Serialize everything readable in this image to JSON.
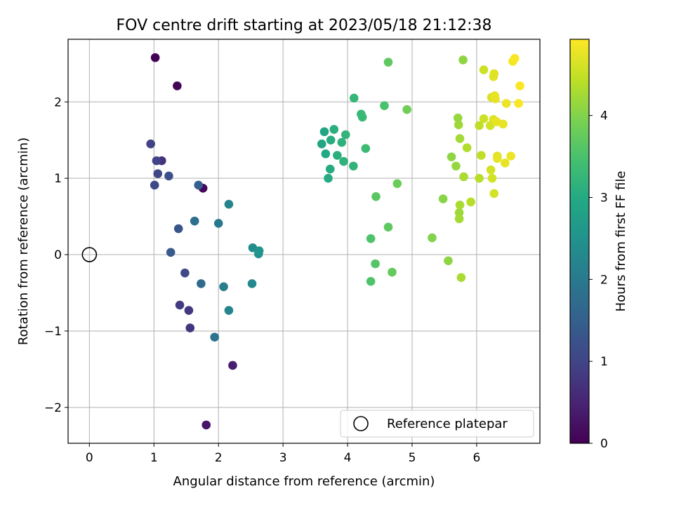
{
  "chart_data": {
    "type": "scatter",
    "title": "FOV centre drift starting at 2023/05/18 21:12:38",
    "xlabel": "Angular distance from reference (arcmin)",
    "ylabel": "Rotation from reference (arcmin)",
    "xlim": [
      -0.33,
      6.98
    ],
    "ylim": [
      -2.47,
      2.82
    ],
    "xticks": [
      0,
      1,
      2,
      3,
      4,
      5,
      6
    ],
    "xtick_labels": [
      "0",
      "1",
      "2",
      "3",
      "4",
      "5",
      "6"
    ],
    "yticks": [
      -2,
      -1,
      0,
      1,
      2
    ],
    "ytick_labels": [
      "−2",
      "−1",
      "0",
      "1",
      "2"
    ],
    "grid": true,
    "colormap": "viridis",
    "colorbar": {
      "label": "Hours from first FF file",
      "range": [
        0,
        4.93
      ],
      "ticks": [
        0,
        1,
        2,
        3,
        4
      ],
      "tick_labels": [
        "0",
        "1",
        "2",
        "3",
        "4"
      ]
    },
    "legend": {
      "location": "lower right",
      "entries": [
        {
          "label": "Reference platepar",
          "marker": "open-circle"
        }
      ]
    },
    "reference": {
      "x": 0,
      "y": 0
    },
    "points": [
      {
        "x": 1.02,
        "y": 2.58,
        "h": 0.02
      },
      {
        "x": 1.36,
        "y": 2.21,
        "h": 0.05
      },
      {
        "x": 1.76,
        "y": 0.87,
        "h": 0.1
      },
      {
        "x": 1.81,
        "y": -2.23,
        "h": 0.3
      },
      {
        "x": 2.22,
        "y": -1.45,
        "h": 0.4
      },
      {
        "x": 1.12,
        "y": 1.23,
        "h": 0.7
      },
      {
        "x": 1.56,
        "y": -0.96,
        "h": 0.75
      },
      {
        "x": 1.54,
        "y": -0.73,
        "h": 0.8
      },
      {
        "x": 1.4,
        "y": -0.66,
        "h": 0.85
      },
      {
        "x": 0.95,
        "y": 1.45,
        "h": 0.95
      },
      {
        "x": 1.04,
        "y": 1.23,
        "h": 1.0
      },
      {
        "x": 1.06,
        "y": 1.06,
        "h": 1.05
      },
      {
        "x": 1.01,
        "y": 0.91,
        "h": 1.1
      },
      {
        "x": 1.48,
        "y": -0.24,
        "h": 1.1
      },
      {
        "x": 1.23,
        "y": 1.03,
        "h": 1.2
      },
      {
        "x": 1.38,
        "y": 0.34,
        "h": 1.3
      },
      {
        "x": 1.26,
        "y": 0.03,
        "h": 1.4
      },
      {
        "x": 1.69,
        "y": 0.91,
        "h": 1.5
      },
      {
        "x": 1.73,
        "y": -0.38,
        "h": 1.7
      },
      {
        "x": 1.63,
        "y": 0.44,
        "h": 1.8
      },
      {
        "x": 1.94,
        "y": -1.08,
        "h": 1.9
      },
      {
        "x": 2.0,
        "y": 0.41,
        "h": 2.0
      },
      {
        "x": 2.08,
        "y": -0.42,
        "h": 2.1
      },
      {
        "x": 2.16,
        "y": 0.66,
        "h": 2.2
      },
      {
        "x": 2.16,
        "y": -0.73,
        "h": 2.2
      },
      {
        "x": 2.52,
        "y": -0.38,
        "h": 2.3
      },
      {
        "x": 2.53,
        "y": 0.09,
        "h": 2.4
      },
      {
        "x": 2.62,
        "y": 0.01,
        "h": 2.5
      },
      {
        "x": 2.63,
        "y": 0.05,
        "h": 2.55
      },
      {
        "x": 3.6,
        "y": 1.45,
        "h": 2.9
      },
      {
        "x": 3.64,
        "y": 1.61,
        "h": 2.9
      },
      {
        "x": 3.66,
        "y": 1.32,
        "h": 2.95
      },
      {
        "x": 3.7,
        "y": 1.0,
        "h": 3.0
      },
      {
        "x": 3.73,
        "y": 1.12,
        "h": 3.0
      },
      {
        "x": 3.74,
        "y": 1.5,
        "h": 3.05
      },
      {
        "x": 3.79,
        "y": 1.64,
        "h": 3.1
      },
      {
        "x": 3.84,
        "y": 1.3,
        "h": 3.1
      },
      {
        "x": 3.91,
        "y": 1.47,
        "h": 3.15
      },
      {
        "x": 3.94,
        "y": 1.22,
        "h": 3.15
      },
      {
        "x": 3.97,
        "y": 1.57,
        "h": 3.2
      },
      {
        "x": 4.09,
        "y": 1.16,
        "h": 3.2
      },
      {
        "x": 4.1,
        "y": 2.05,
        "h": 3.25
      },
      {
        "x": 4.21,
        "y": 1.84,
        "h": 3.3
      },
      {
        "x": 4.23,
        "y": 1.8,
        "h": 3.3
      },
      {
        "x": 4.28,
        "y": 1.39,
        "h": 3.35
      },
      {
        "x": 4.57,
        "y": 1.95,
        "h": 3.5
      },
      {
        "x": 4.36,
        "y": 0.21,
        "h": 3.55
      },
      {
        "x": 4.36,
        "y": -0.35,
        "h": 3.55
      },
      {
        "x": 4.43,
        "y": -0.12,
        "h": 3.6
      },
      {
        "x": 4.44,
        "y": 0.76,
        "h": 3.65
      },
      {
        "x": 4.63,
        "y": 2.52,
        "h": 3.7
      },
      {
        "x": 4.63,
        "y": 0.36,
        "h": 3.7
      },
      {
        "x": 4.69,
        "y": -0.23,
        "h": 3.75
      },
      {
        "x": 4.77,
        "y": 0.93,
        "h": 3.8
      },
      {
        "x": 4.92,
        "y": 1.9,
        "h": 3.85
      },
      {
        "x": 5.31,
        "y": 0.22,
        "h": 4.0
      },
      {
        "x": 5.48,
        "y": 0.73,
        "h": 4.05
      },
      {
        "x": 5.56,
        "y": -0.08,
        "h": 4.1
      },
      {
        "x": 5.61,
        "y": 1.28,
        "h": 4.1
      },
      {
        "x": 5.68,
        "y": 1.16,
        "h": 4.15
      },
      {
        "x": 5.71,
        "y": 1.79,
        "h": 4.15
      },
      {
        "x": 5.72,
        "y": 1.7,
        "h": 4.2
      },
      {
        "x": 5.73,
        "y": 0.55,
        "h": 4.2
      },
      {
        "x": 5.73,
        "y": 0.47,
        "h": 4.25
      },
      {
        "x": 5.74,
        "y": 1.52,
        "h": 4.25
      },
      {
        "x": 5.74,
        "y": 0.65,
        "h": 4.3
      },
      {
        "x": 5.76,
        "y": -0.3,
        "h": 4.3
      },
      {
        "x": 5.79,
        "y": 2.55,
        "h": 4.1
      },
      {
        "x": 5.8,
        "y": 1.02,
        "h": 4.3
      },
      {
        "x": 5.85,
        "y": 1.4,
        "h": 4.35
      },
      {
        "x": 5.91,
        "y": 0.69,
        "h": 4.4
      },
      {
        "x": 6.04,
        "y": 1.0,
        "h": 4.4
      },
      {
        "x": 6.04,
        "y": 1.69,
        "h": 4.45
      },
      {
        "x": 6.07,
        "y": 1.3,
        "h": 4.45
      },
      {
        "x": 6.11,
        "y": 2.42,
        "h": 4.55
      },
      {
        "x": 6.11,
        "y": 1.78,
        "h": 4.55
      },
      {
        "x": 6.21,
        "y": 1.69,
        "h": 4.6
      },
      {
        "x": 6.22,
        "y": 1.11,
        "h": 4.6
      },
      {
        "x": 6.23,
        "y": 2.06,
        "h": 4.65
      },
      {
        "x": 6.24,
        "y": 1.0,
        "h": 4.6
      },
      {
        "x": 6.26,
        "y": 1.77,
        "h": 4.7
      },
      {
        "x": 6.26,
        "y": 2.33,
        "h": 4.7
      },
      {
        "x": 6.27,
        "y": 2.37,
        "h": 4.7
      },
      {
        "x": 6.27,
        "y": 0.8,
        "h": 4.6
      },
      {
        "x": 6.28,
        "y": 2.08,
        "h": 4.75
      },
      {
        "x": 6.29,
        "y": 2.04,
        "h": 4.75
      },
      {
        "x": 6.31,
        "y": 1.74,
        "h": 4.75
      },
      {
        "x": 6.32,
        "y": 1.29,
        "h": 4.7
      },
      {
        "x": 6.32,
        "y": 1.26,
        "h": 4.75
      },
      {
        "x": 6.41,
        "y": 1.71,
        "h": 4.75
      },
      {
        "x": 6.44,
        "y": 1.2,
        "h": 4.75
      },
      {
        "x": 6.46,
        "y": 1.98,
        "h": 4.8
      },
      {
        "x": 6.53,
        "y": 1.29,
        "h": 4.8
      },
      {
        "x": 6.56,
        "y": 2.53,
        "h": 4.85
      },
      {
        "x": 6.59,
        "y": 2.57,
        "h": 4.9
      },
      {
        "x": 6.65,
        "y": 1.98,
        "h": 4.9
      },
      {
        "x": 6.67,
        "y": 2.21,
        "h": 4.9
      }
    ]
  }
}
